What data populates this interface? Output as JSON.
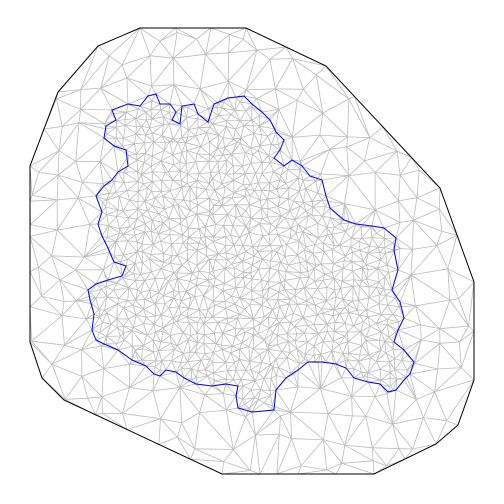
{
  "figure": {
    "kind": "triangulated-mesh",
    "colors": {
      "background": "#ffffff",
      "hull_outline": "#000000",
      "mesh_edges": "#bdbdbd",
      "region_boundary": "#0000ff"
    }
  }
}
